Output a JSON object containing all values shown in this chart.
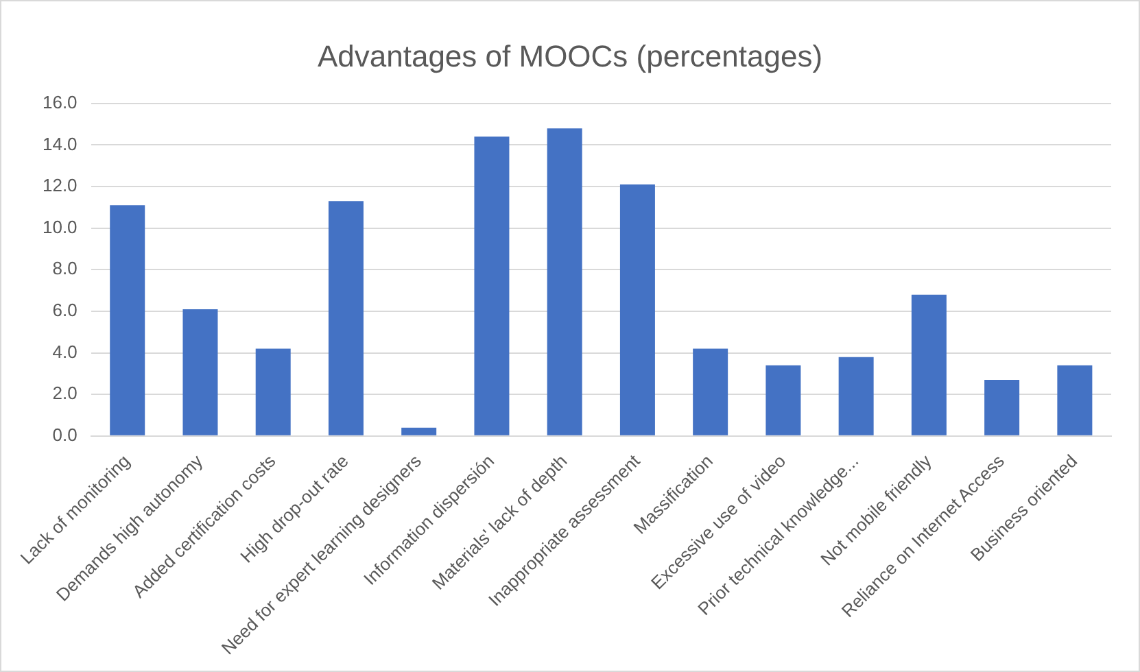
{
  "chart_data": {
    "type": "bar",
    "title": "Advantages of MOOCs (percentages)",
    "categories": [
      "Lack of monitoring",
      "Demands high autonomy",
      "Added certification costs",
      "High drop-out rate",
      "Need for expert learning designers",
      "Information dispersión",
      "Materials' lack of depth",
      "Inappropriate assessment",
      "Massification",
      "Excessive use of video",
      "Prior technical knowledge...",
      "Not mobile friendly",
      "Reliance on Internet Access",
      "Business oriented"
    ],
    "values": [
      11.1,
      6.1,
      4.2,
      11.3,
      0.4,
      14.4,
      14.8,
      12.1,
      4.2,
      3.4,
      3.8,
      6.8,
      2.7,
      3.4
    ],
    "color": "#4472c4",
    "ylim": [
      0,
      16
    ],
    "yticks": [
      {
        "value": 0,
        "label": "0.0"
      },
      {
        "value": 2,
        "label": "2.0"
      },
      {
        "value": 4,
        "label": "4.0"
      },
      {
        "value": 6,
        "label": "6.0"
      },
      {
        "value": 8,
        "label": "8.0"
      },
      {
        "value": 10,
        "label": "10.0"
      },
      {
        "value": 12,
        "label": "12.0"
      },
      {
        "value": 14,
        "label": "14.0"
      },
      {
        "value": 16,
        "label": "16.0"
      }
    ],
    "grid": "y",
    "legend": false
  }
}
